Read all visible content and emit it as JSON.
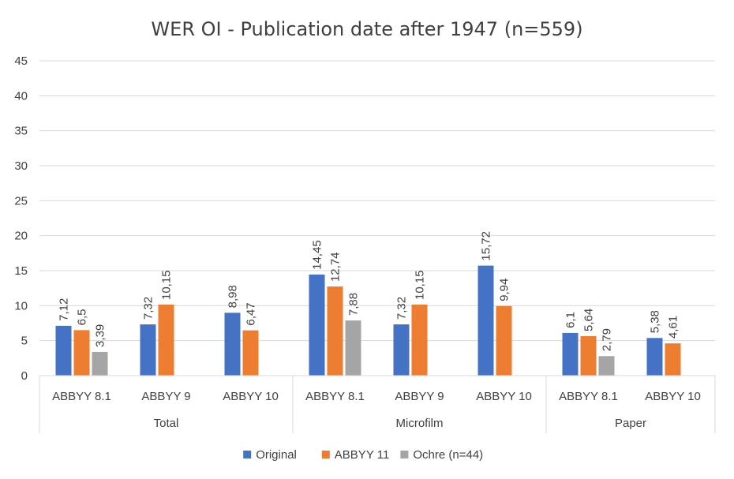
{
  "chart_data": {
    "type": "bar",
    "title": "WER OI - Publication date after 1947 (n=559)",
    "xlabel": "",
    "ylabel": "",
    "ylim": [
      0,
      45
    ],
    "yticks": [
      "0",
      "5",
      "10",
      "15",
      "20",
      "25",
      "30",
      "35",
      "40",
      "45"
    ],
    "grid": true,
    "legend_position": "bottom",
    "groups": [
      {
        "label": "Total",
        "categories": [
          "ABBYY 8.1",
          "ABBYY 9",
          "ABBYY 10"
        ]
      },
      {
        "label": "Microfilm",
        "categories": [
          "ABBYY 8.1",
          "ABBYY 9",
          "ABBYY 10"
        ]
      },
      {
        "label": "Paper",
        "categories": [
          "ABBYY 8.1",
          "ABBYY 10"
        ]
      }
    ],
    "series": [
      {
        "name": "Original",
        "color": "#4472C4",
        "values": [
          7.12,
          7.32,
          8.98,
          14.45,
          7.32,
          15.72,
          6.1,
          5.38
        ],
        "labels": [
          "7,12",
          "7,32",
          "8,98",
          "14,45",
          "7,32",
          "15,72",
          "6,1",
          "5,38"
        ]
      },
      {
        "name": "ABBYY 11",
        "color": "#ED7D31",
        "values": [
          6.5,
          10.15,
          6.47,
          12.74,
          10.15,
          9.94,
          5.64,
          4.61
        ],
        "labels": [
          "6,5",
          "10,15",
          "6,47",
          "12,74",
          "10,15",
          "9,94",
          "5,64",
          "4,61"
        ]
      },
      {
        "name": "Ochre (n=44)",
        "color": "#A5A5A5",
        "values": [
          3.39,
          null,
          null,
          7.88,
          null,
          null,
          2.79,
          null
        ],
        "labels": [
          "3,39",
          null,
          null,
          "7,88",
          null,
          null,
          "2,79",
          null
        ]
      }
    ]
  }
}
